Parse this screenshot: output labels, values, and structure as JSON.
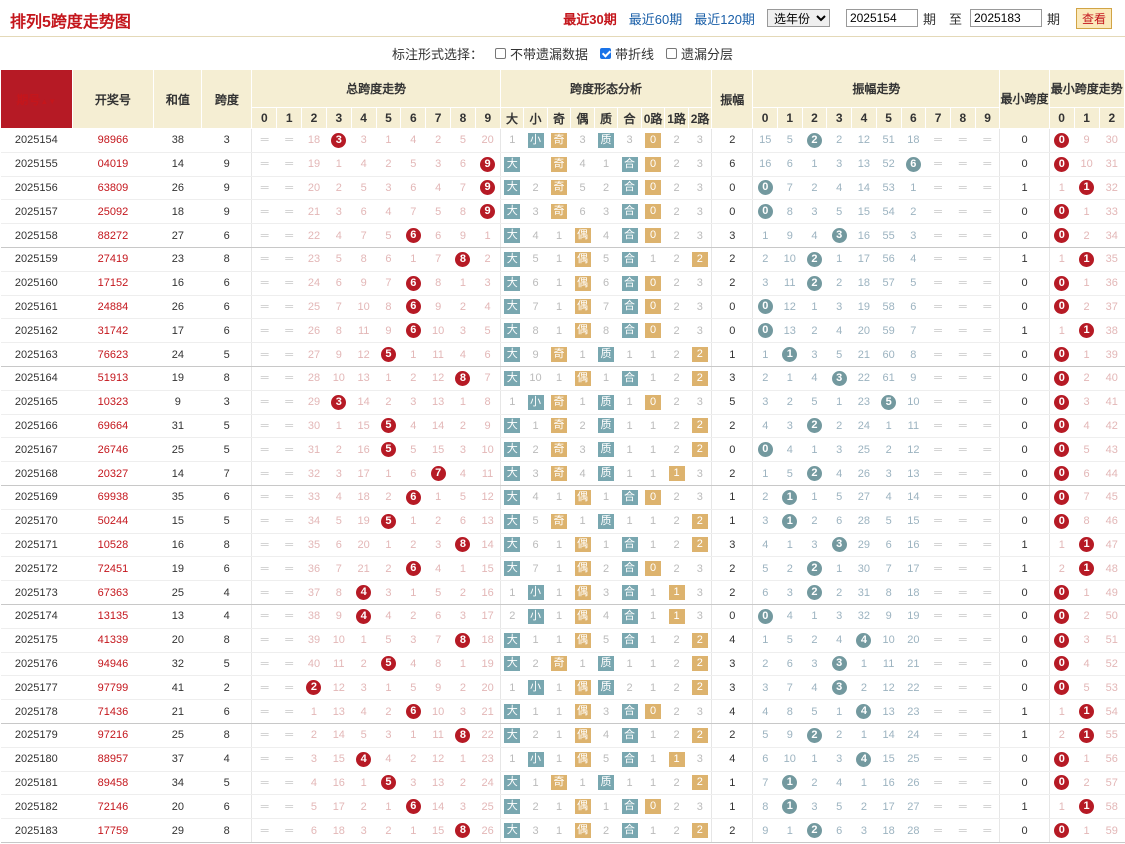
{
  "header": {
    "title": "排列5跨度走势图",
    "links": [
      "最近30期",
      "最近60期",
      "最近120期"
    ],
    "year_select": "选年份",
    "from_issue": "2025154",
    "to_issue": "2025183",
    "label_qi": "期",
    "label_zhi": "至",
    "btn_view": "查看"
  },
  "options": {
    "label": "标注形式选择：",
    "items": [
      {
        "label": "不带遗漏数据",
        "checked": false
      },
      {
        "label": "带折线",
        "checked": true
      },
      {
        "label": "遗漏分层",
        "checked": false
      }
    ]
  },
  "columns": {
    "issue": "期号",
    "draw": "开奖号",
    "sum": "和值",
    "span": "跨度",
    "span_trend": "总跨度走势",
    "form_analysis": "跨度形态分析",
    "amp": "振幅",
    "amp_trend": "振幅走势",
    "min_span": "最小跨度",
    "min_trend": "最小跨度走势",
    "form_sub": [
      "大",
      "小",
      "奇",
      "偶",
      "质",
      "合",
      "0路",
      "1路",
      "2路"
    ],
    "digits": [
      "0",
      "1",
      "2",
      "3",
      "4",
      "5",
      "6",
      "7",
      "8",
      "9"
    ],
    "min_digits": [
      "0",
      "1",
      "2"
    ]
  },
  "rows": [
    {
      "i": "2025154",
      "n": "98966",
      "s": "38",
      "k": "3",
      "a": "2",
      "m": "0",
      "sz": "1",
      "oe": "3",
      "pc": "3",
      "r": "0",
      "ms": [
        "",
        "",
        "18",
        "",
        "3",
        "1",
        "4",
        "2",
        "5",
        "20"
      ],
      "as": [
        "15",
        "5",
        "",
        "2",
        "12",
        "51",
        "18",
        "",
        "",
        ""
      ],
      "mm": [
        "",
        "9",
        "30"
      ]
    },
    {
      "i": "2025155",
      "n": "04019",
      "s": "14",
      "k": "9",
      "a": "6",
      "m": "0",
      "sz": "",
      "oe": "4",
      "pc": "",
      "r": "0",
      "ms": [
        "",
        "",
        "19",
        "1",
        "4",
        "2",
        "5",
        "3",
        "6",
        ""
      ],
      "as": [
        "16",
        "6",
        "1",
        "3",
        "13",
        "52",
        "",
        "",
        "",
        ""
      ],
      "mm": [
        "",
        "10",
        "31"
      ]
    },
    {
      "i": "2025156",
      "n": "63809",
      "s": "26",
      "k": "9",
      "a": "0",
      "m": "1",
      "sz": "2",
      "oe": "5",
      "pc": "2",
      "r": "0",
      "ms": [
        "",
        "",
        "20",
        "2",
        "5",
        "3",
        "6",
        "4",
        "7",
        ""
      ],
      "as": [
        "",
        "7",
        "2",
        "4",
        "14",
        "53",
        "1",
        "",
        "",
        ""
      ],
      "mm": [
        "1",
        "",
        "32"
      ]
    },
    {
      "i": "2025157",
      "n": "25092",
      "s": "18",
      "k": "9",
      "a": "0",
      "m": "0",
      "sz": "3",
      "oe": "6",
      "pc": "3",
      "r": "0",
      "ms": [
        "",
        "",
        "21",
        "3",
        "6",
        "4",
        "7",
        "5",
        "8",
        ""
      ],
      "as": [
        "",
        "8",
        "3",
        "5",
        "15",
        "54",
        "2",
        "",
        "",
        ""
      ],
      "mm": [
        "",
        "1",
        "33"
      ]
    },
    {
      "i": "2025158",
      "n": "88272",
      "s": "27",
      "k": "6",
      "a": "3",
      "m": "0",
      "sz": "4",
      "oe": "",
      "pc": "4",
      "r": "0",
      "ms": [
        "",
        "",
        "22",
        "4",
        "7",
        "5",
        "",
        "6",
        "9",
        "1"
      ],
      "as": [
        "1",
        "9",
        "4",
        "",
        "16",
        "55",
        "3",
        "",
        "",
        ""
      ],
      "mm": [
        "",
        "2",
        "34"
      ]
    },
    {
      "i": "2025159",
      "n": "27419",
      "s": "23",
      "k": "8",
      "a": "2",
      "m": "1",
      "sz": "5",
      "oe": "",
      "pc": "5",
      "r": "2",
      "ms": [
        "",
        "",
        "23",
        "5",
        "8",
        "6",
        "1",
        "7",
        "",
        "2"
      ],
      "as": [
        "2",
        "10",
        "",
        "1",
        "17",
        "56",
        "4",
        "",
        "",
        ""
      ],
      "mm": [
        "1",
        "",
        "35"
      ]
    },
    {
      "i": "2025160",
      "n": "17152",
      "s": "16",
      "k": "6",
      "a": "2",
      "m": "0",
      "sz": "6",
      "oe": "",
      "pc": "6",
      "r": "0",
      "ms": [
        "",
        "",
        "24",
        "6",
        "9",
        "7",
        "",
        "8",
        "1",
        "3"
      ],
      "as": [
        "3",
        "11",
        "",
        "2",
        "18",
        "57",
        "5",
        "",
        "",
        ""
      ],
      "mm": [
        "",
        "1",
        "36"
      ]
    },
    {
      "i": "2025161",
      "n": "24884",
      "s": "26",
      "k": "6",
      "a": "0",
      "m": "0",
      "sz": "7",
      "oe": "",
      "pc": "7",
      "r": "0",
      "ms": [
        "",
        "",
        "25",
        "7",
        "10",
        "8",
        "",
        "9",
        "2",
        "4"
      ],
      "as": [
        "",
        "12",
        "1",
        "3",
        "19",
        "58",
        "6",
        "",
        "",
        ""
      ],
      "mm": [
        "",
        "2",
        "37"
      ]
    },
    {
      "i": "2025162",
      "n": "31742",
      "s": "17",
      "k": "6",
      "a": "0",
      "m": "1",
      "sz": "8",
      "oe": "",
      "pc": "8",
      "r": "0",
      "ms": [
        "",
        "",
        "26",
        "8",
        "11",
        "9",
        "",
        "10",
        "3",
        "5"
      ],
      "as": [
        "",
        "13",
        "2",
        "4",
        "20",
        "59",
        "7",
        "",
        "",
        ""
      ],
      "mm": [
        "1",
        "",
        "38"
      ]
    },
    {
      "i": "2025163",
      "n": "76623",
      "s": "24",
      "k": "5",
      "a": "1",
      "m": "0",
      "sz": "9",
      "oe": "1",
      "pc": "",
      "r": "2",
      "ms": [
        "",
        "",
        "27",
        "9",
        "12",
        "",
        "1",
        "11",
        "4",
        "6"
      ],
      "as": [
        "1",
        "",
        "3",
        "5",
        "21",
        "60",
        "8",
        "",
        "",
        ""
      ],
      "mm": [
        "",
        "1",
        "39"
      ]
    },
    {
      "i": "2025164",
      "n": "51913",
      "s": "19",
      "k": "8",
      "a": "3",
      "m": "0",
      "sz": "10",
      "oe": "",
      "pc": "1",
      "r": "2",
      "ms": [
        "",
        "",
        "28",
        "10",
        "13",
        "1",
        "2",
        "12",
        "",
        "7"
      ],
      "as": [
        "2",
        "1",
        "4",
        "",
        "22",
        "61",
        "9",
        "",
        "",
        ""
      ],
      "mm": [
        "",
        "2",
        "40"
      ]
    },
    {
      "i": "2025165",
      "n": "10323",
      "s": "9",
      "k": "3",
      "a": "5",
      "m": "0",
      "sz": "1",
      "oe": "1",
      "pc": "",
      "r": "0",
      "ms": [
        "",
        "",
        "29",
        "",
        "14",
        "2",
        "3",
        "13",
        "1",
        "8"
      ],
      "as": [
        "3",
        "2",
        "5",
        "1",
        "23",
        "",
        "10",
        "",
        "",
        ""
      ],
      "mm": [
        "",
        "3",
        "41"
      ]
    },
    {
      "i": "2025166",
      "n": "69664",
      "s": "31",
      "k": "5",
      "a": "2",
      "m": "0",
      "sz": "1",
      "oe": "2",
      "pc": "",
      "r": "2",
      "ms": [
        "",
        "",
        "30",
        "1",
        "15",
        "",
        "4",
        "14",
        "2",
        "9"
      ],
      "as": [
        "4",
        "3",
        "",
        "2",
        "24",
        "1",
        "11",
        "",
        "",
        ""
      ],
      "mm": [
        "",
        "4",
        "42"
      ]
    },
    {
      "i": "2025167",
      "n": "26746",
      "s": "25",
      "k": "5",
      "a": "0",
      "m": "0",
      "sz": "2",
      "oe": "3",
      "pc": "",
      "r": "2",
      "ms": [
        "",
        "",
        "31",
        "2",
        "16",
        "",
        "5",
        "15",
        "3",
        "10"
      ],
      "as": [
        "",
        "4",
        "1",
        "3",
        "25",
        "2",
        "12",
        "",
        "",
        ""
      ],
      "mm": [
        "",
        "5",
        "43"
      ]
    },
    {
      "i": "2025168",
      "n": "20327",
      "s": "14",
      "k": "7",
      "a": "2",
      "m": "0",
      "sz": "3",
      "oe": "4",
      "pc": "",
      "r": "1",
      "ms": [
        "",
        "",
        "32",
        "3",
        "17",
        "1",
        "6",
        "",
        "4",
        "11"
      ],
      "as": [
        "1",
        "5",
        "",
        "4",
        "26",
        "3",
        "13",
        "",
        "",
        ""
      ],
      "mm": [
        "",
        "6",
        "44"
      ]
    },
    {
      "i": "2025169",
      "n": "69938",
      "s": "35",
      "k": "6",
      "a": "1",
      "m": "0",
      "sz": "4",
      "oe": "",
      "pc": "1",
      "r": "0",
      "ms": [
        "",
        "",
        "33",
        "4",
        "18",
        "2",
        "",
        "1",
        "5",
        "12"
      ],
      "as": [
        "2",
        "",
        "1",
        "5",
        "27",
        "4",
        "14",
        "",
        "",
        ""
      ],
      "mm": [
        "",
        "7",
        "45"
      ]
    },
    {
      "i": "2025170",
      "n": "50244",
      "s": "15",
      "k": "5",
      "a": "1",
      "m": "0",
      "sz": "5",
      "oe": "1",
      "pc": "",
      "r": "2",
      "ms": [
        "",
        "",
        "34",
        "5",
        "19",
        "",
        "1",
        "2",
        "6",
        "13"
      ],
      "as": [
        "3",
        "",
        "2",
        "6",
        "28",
        "5",
        "15",
        "",
        "",
        ""
      ],
      "mm": [
        "",
        "8",
        "46"
      ]
    },
    {
      "i": "2025171",
      "n": "10528",
      "s": "16",
      "k": "8",
      "a": "3",
      "m": "1",
      "sz": "6",
      "oe": "",
      "pc": "1",
      "r": "2",
      "ms": [
        "",
        "",
        "35",
        "6",
        "20",
        "1",
        "2",
        "3",
        "",
        "14"
      ],
      "as": [
        "4",
        "1",
        "3",
        "",
        "29",
        "6",
        "16",
        "",
        "",
        ""
      ],
      "mm": [
        "1",
        "",
        "47"
      ]
    },
    {
      "i": "2025172",
      "n": "72451",
      "s": "19",
      "k": "6",
      "a": "2",
      "m": "1",
      "sz": "7",
      "oe": "",
      "pc": "2",
      "r": "0",
      "ms": [
        "",
        "",
        "36",
        "7",
        "21",
        "2",
        "",
        "4",
        "1",
        "15"
      ],
      "as": [
        "5",
        "2",
        "",
        "1",
        "30",
        "7",
        "17",
        "",
        "",
        ""
      ],
      "mm": [
        "2",
        "",
        "48"
      ]
    },
    {
      "i": "2025173",
      "n": "67363",
      "s": "25",
      "k": "4",
      "a": "2",
      "m": "0",
      "sz": "1",
      "oe": "",
      "pc": "3",
      "r": "1",
      "ms": [
        "",
        "",
        "37",
        "8",
        "",
        "3",
        "1",
        "5",
        "2",
        "16"
      ],
      "as": [
        "6",
        "3",
        "",
        "2",
        "31",
        "8",
        "18",
        "",
        "",
        ""
      ],
      "mm": [
        "",
        "1",
        "49"
      ]
    },
    {
      "i": "2025174",
      "n": "13135",
      "s": "13",
      "k": "4",
      "a": "0",
      "m": "0",
      "sz": "2",
      "oe": "",
      "pc": "4",
      "r": "1",
      "ms": [
        "",
        "",
        "38",
        "9",
        "",
        "4",
        "2",
        "6",
        "3",
        "17"
      ],
      "as": [
        "",
        "4",
        "1",
        "3",
        "32",
        "9",
        "19",
        "",
        "",
        ""
      ],
      "mm": [
        "",
        "2",
        "50"
      ]
    },
    {
      "i": "2025175",
      "n": "41339",
      "s": "20",
      "k": "8",
      "a": "4",
      "m": "0",
      "sz": "1",
      "oe": "",
      "pc": "5",
      "r": "2",
      "ms": [
        "",
        "",
        "39",
        "10",
        "1",
        "5",
        "3",
        "7",
        "",
        "18"
      ],
      "as": [
        "1",
        "5",
        "2",
        "4",
        "",
        "10",
        "20",
        "",
        "",
        ""
      ],
      "mm": [
        "",
        "3",
        "51"
      ]
    },
    {
      "i": "2025176",
      "n": "94946",
      "s": "32",
      "k": "5",
      "a": "3",
      "m": "0",
      "sz": "2",
      "oe": "1",
      "pc": "",
      "r": "2",
      "ms": [
        "",
        "",
        "40",
        "11",
        "2",
        "",
        "4",
        "8",
        "1",
        "19"
      ],
      "as": [
        "2",
        "6",
        "3",
        "",
        "1",
        "11",
        "21",
        "",
        "",
        ""
      ],
      "mm": [
        "",
        "4",
        "52"
      ]
    },
    {
      "i": "2025177",
      "n": "97799",
      "s": "41",
      "k": "2",
      "a": "3",
      "m": "0",
      "sz": "1",
      "oe": "",
      "pc": "2",
      "r": "2",
      "ms": [
        "",
        "",
        "",
        "12",
        "3",
        "1",
        "5",
        "9",
        "2",
        "20"
      ],
      "as": [
        "3",
        "7",
        "4",
        "",
        "2",
        "12",
        "22",
        "",
        "",
        ""
      ],
      "mm": [
        "",
        "5",
        "53"
      ]
    },
    {
      "i": "2025178",
      "n": "71436",
      "s": "21",
      "k": "6",
      "a": "4",
      "m": "1",
      "sz": "1",
      "oe": "",
      "pc": "3",
      "r": "0",
      "ms": [
        "",
        "",
        "1",
        "13",
        "4",
        "2",
        "",
        "10",
        "3",
        "21"
      ],
      "as": [
        "4",
        "8",
        "5",
        "1",
        "",
        "13",
        "23",
        "",
        "",
        ""
      ],
      "mm": [
        "1",
        "",
        "54"
      ]
    },
    {
      "i": "2025179",
      "n": "97216",
      "s": "25",
      "k": "8",
      "a": "2",
      "m": "1",
      "sz": "2",
      "oe": "",
      "pc": "4",
      "r": "2",
      "ms": [
        "",
        "",
        "2",
        "14",
        "5",
        "3",
        "1",
        "11",
        "",
        "22"
      ],
      "as": [
        "5",
        "9",
        "",
        "2",
        "1",
        "14",
        "24",
        "",
        "",
        ""
      ],
      "mm": [
        "2",
        "",
        "55"
      ]
    },
    {
      "i": "2025180",
      "n": "88957",
      "s": "37",
      "k": "4",
      "a": "4",
      "m": "0",
      "sz": "1",
      "oe": "",
      "pc": "5",
      "r": "1",
      "ms": [
        "",
        "",
        "3",
        "15",
        "",
        "4",
        "2",
        "12",
        "1",
        "23"
      ],
      "as": [
        "6",
        "10",
        "1",
        "3",
        "",
        "15",
        "25",
        "",
        "",
        ""
      ],
      "mm": [
        "",
        "1",
        "56"
      ]
    },
    {
      "i": "2025181",
      "n": "89458",
      "s": "34",
      "k": "5",
      "a": "1",
      "m": "0",
      "sz": "1",
      "oe": "1",
      "pc": "",
      "r": "2",
      "ms": [
        "",
        "",
        "4",
        "16",
        "1",
        "",
        "3",
        "13",
        "2",
        "24"
      ],
      "as": [
        "7",
        "",
        "2",
        "4",
        "1",
        "16",
        "26",
        "",
        "",
        ""
      ],
      "mm": [
        "",
        "2",
        "57"
      ]
    },
    {
      "i": "2025182",
      "n": "72146",
      "s": "20",
      "k": "6",
      "a": "1",
      "m": "1",
      "sz": "2",
      "oe": "",
      "pc": "1",
      "r": "0",
      "ms": [
        "",
        "",
        "5",
        "17",
        "2",
        "1",
        "",
        "14",
        "3",
        "25"
      ],
      "as": [
        "8",
        "",
        "3",
        "5",
        "2",
        "17",
        "27",
        "",
        "",
        ""
      ],
      "mm": [
        "1",
        "",
        "58"
      ]
    },
    {
      "i": "2025183",
      "n": "17759",
      "s": "29",
      "k": "8",
      "a": "2",
      "m": "0",
      "sz": "3",
      "oe": "",
      "pc": "2",
      "r": "2",
      "ms": [
        "",
        "",
        "6",
        "18",
        "3",
        "2",
        "1",
        "15",
        "",
        "26"
      ],
      "as": [
        "9",
        "1",
        "",
        "6",
        "3",
        "18",
        "28",
        "",
        "",
        ""
      ],
      "mm": [
        "",
        "1",
        "59"
      ]
    }
  ]
}
